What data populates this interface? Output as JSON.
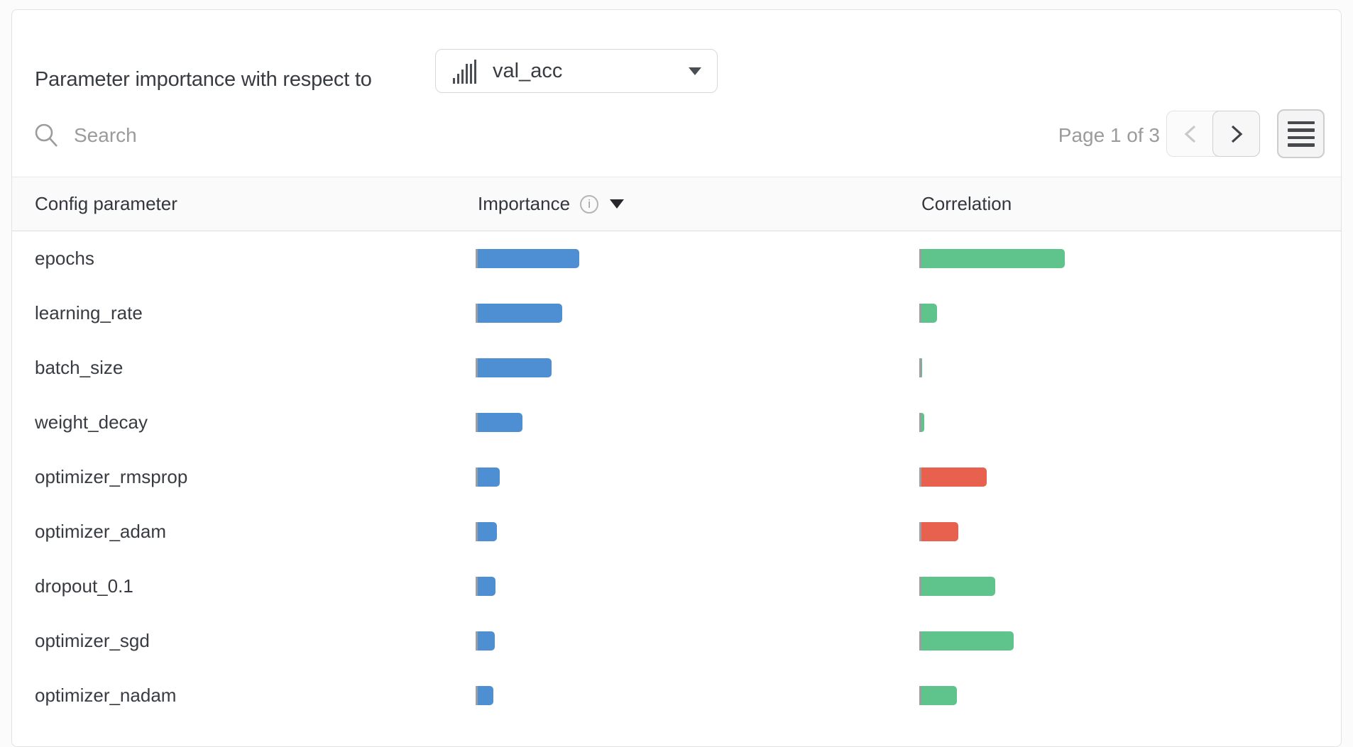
{
  "header": {
    "title": "Parameter importance with respect to",
    "metric_selector": {
      "value": "val_acc",
      "icon": "histogram-icon",
      "caret_icon": "chevron-down-icon"
    }
  },
  "toolbar": {
    "search": {
      "placeholder": "Search",
      "icon": "search-icon",
      "value": ""
    },
    "pagination": {
      "label": "Page 1 of 3",
      "prev_icon": "chevron-left-icon",
      "prev_enabled": false,
      "next_icon": "chevron-right-icon",
      "next_enabled": true
    },
    "menu_icon": "menu-icon"
  },
  "table": {
    "columns": [
      {
        "label": "Config parameter"
      },
      {
        "label": "Importance",
        "info_icon": "info-icon",
        "sort_icon": "caret-down-icon",
        "sort": "desc"
      },
      {
        "label": "Correlation"
      }
    ],
    "rows": [
      {
        "param": "epochs",
        "importance": 0.229,
        "correlation": 0.34
      },
      {
        "param": "learning_rate",
        "importance": 0.19,
        "correlation": 0.037
      },
      {
        "param": "batch_size",
        "importance": 0.166,
        "correlation": 0.002
      },
      {
        "param": "weight_decay",
        "importance": 0.101,
        "correlation": 0.007
      },
      {
        "param": "optimizer_rmsprop",
        "importance": 0.05,
        "correlation": -0.155
      },
      {
        "param": "optimizer_adam",
        "importance": 0.043,
        "correlation": -0.088
      },
      {
        "param": "dropout_0.1",
        "importance": 0.04,
        "correlation": 0.175
      },
      {
        "param": "optimizer_sgd",
        "importance": 0.038,
        "correlation": 0.219
      },
      {
        "param": "optimizer_nadam",
        "importance": 0.035,
        "correlation": 0.084
      }
    ]
  },
  "colors": {
    "importance_bar": "#4d8fd2",
    "correlation_positive": "#5fc48c",
    "correlation_negative": "#e8614f",
    "axis_line": "#9e9ea2"
  }
}
